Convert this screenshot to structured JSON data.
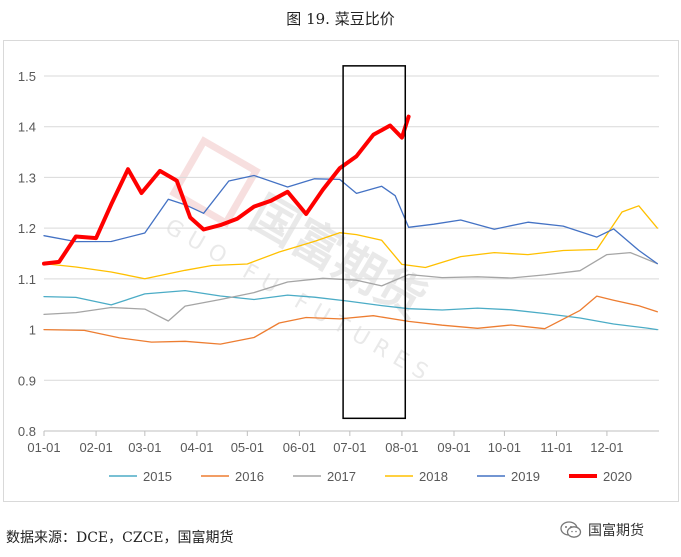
{
  "figure_title": "图 19.  菜豆比价",
  "source_note": "数据来源：DCE，CZCE，国富期货",
  "brand_name": "国富期货",
  "watermark": {
    "text": "国富期货",
    "sub": "GUO FU FUTURES"
  },
  "colors": {
    "2015": "#4bacc6",
    "2016": "#ed7d31",
    "2017": "#a5a5a5",
    "2018": "#ffc000",
    "2019": "#4472c4",
    "2020": "#ff0000"
  },
  "chart_data": {
    "type": "line",
    "title": "",
    "xlabel": "",
    "ylabel": "",
    "ylim": [
      0.8,
      1.5
    ],
    "y_ticks": [
      "0.8",
      "0.9",
      "1",
      "1.1",
      "1.2",
      "1.3",
      "1.4",
      "1.5"
    ],
    "x_ticks": [
      "01-01",
      "02-01",
      "03-01",
      "04-01",
      "05-01",
      "06-01",
      "07-01",
      "08-01",
      "09-01",
      "10-01",
      "11-01",
      "12-01"
    ],
    "grid": "horizontal",
    "legend": "bottom",
    "highlight_box": {
      "x_range": [
        "06-27",
        "08-03"
      ],
      "y_range": [
        0.825,
        1.52
      ]
    },
    "series": [
      {
        "name": "2015",
        "x": [
          "01-01",
          "01-20",
          "02-10",
          "03-01",
          "03-25",
          "04-15",
          "05-05",
          "05-25",
          "06-10",
          "06-30",
          "07-20",
          "08-05",
          "08-25",
          "09-15",
          "10-05",
          "10-25",
          "11-15",
          "12-05",
          "12-25",
          "12-31"
        ],
        "values": [
          1.065,
          1.06,
          1.045,
          1.07,
          1.08,
          1.07,
          1.06,
          1.065,
          1.06,
          1.055,
          1.05,
          1.045,
          1.04,
          1.04,
          1.035,
          1.03,
          1.025,
          1.015,
          1.005,
          1.0
        ]
      },
      {
        "name": "2016",
        "x": [
          "01-01",
          "01-25",
          "02-15",
          "03-05",
          "03-25",
          "04-15",
          "05-05",
          "05-20",
          "06-05",
          "06-25",
          "07-15",
          "08-05",
          "08-25",
          "09-15",
          "10-05",
          "10-25",
          "11-15",
          "11-25",
          "12-05",
          "12-20",
          "12-31"
        ],
        "values": [
          1.0,
          0.995,
          0.98,
          0.975,
          0.98,
          0.975,
          0.985,
          1.01,
          1.02,
          1.02,
          1.03,
          1.02,
          1.01,
          1.0,
          1.005,
          1.0,
          1.04,
          1.07,
          1.06,
          1.045,
          1.035
        ]
      },
      {
        "name": "2017",
        "x": [
          "01-01",
          "01-20",
          "02-10",
          "03-01",
          "03-15",
          "03-25",
          "04-15",
          "05-05",
          "05-25",
          "06-15",
          "07-05",
          "07-20",
          "08-05",
          "08-25",
          "09-15",
          "10-05",
          "10-25",
          "11-15",
          "12-01",
          "12-15",
          "12-31"
        ],
        "values": [
          1.03,
          1.03,
          1.04,
          1.04,
          1.02,
          1.05,
          1.06,
          1.07,
          1.09,
          1.1,
          1.1,
          1.09,
          1.11,
          1.1,
          1.1,
          1.1,
          1.11,
          1.12,
          1.15,
          1.15,
          1.13
        ]
      },
      {
        "name": "2018",
        "x": [
          "01-01",
          "01-20",
          "02-10",
          "03-01",
          "03-25",
          "04-10",
          "05-01",
          "05-20",
          "06-10",
          "06-25",
          "07-05",
          "07-20",
          "08-01",
          "08-15",
          "09-05",
          "09-25",
          "10-15",
          "11-05",
          "11-25",
          "12-10",
          "12-20",
          "12-31"
        ],
        "values": [
          1.13,
          1.12,
          1.11,
          1.1,
          1.12,
          1.13,
          1.13,
          1.15,
          1.17,
          1.19,
          1.19,
          1.18,
          1.13,
          1.12,
          1.14,
          1.15,
          1.15,
          1.16,
          1.16,
          1.23,
          1.24,
          1.2
        ]
      },
      {
        "name": "2019",
        "x": [
          "01-01",
          "01-20",
          "02-10",
          "03-01",
          "03-15",
          "03-25",
          "04-05",
          "04-20",
          "05-05",
          "05-25",
          "06-10",
          "06-25",
          "07-05",
          "07-20",
          "07-28",
          "08-05",
          "08-20",
          "09-05",
          "09-25",
          "10-15",
          "11-05",
          "11-25",
          "12-05",
          "12-20",
          "12-31"
        ],
        "values": [
          1.185,
          1.17,
          1.17,
          1.19,
          1.26,
          1.25,
          1.23,
          1.29,
          1.3,
          1.28,
          1.3,
          1.3,
          1.27,
          1.28,
          1.26,
          1.2,
          1.21,
          1.22,
          1.2,
          1.21,
          1.2,
          1.18,
          1.2,
          1.16,
          1.13
        ]
      },
      {
        "name": "2020",
        "x": [
          "01-01",
          "01-10",
          "01-20",
          "02-01",
          "02-10",
          "02-20",
          "02-28",
          "03-10",
          "03-20",
          "03-28",
          "04-05",
          "04-15",
          "04-25",
          "05-05",
          "05-15",
          "05-25",
          "06-05",
          "06-15",
          "06-25",
          "07-05",
          "07-15",
          "07-25",
          "08-01",
          "08-05"
        ],
        "values": [
          1.13,
          1.13,
          1.18,
          1.18,
          1.25,
          1.32,
          1.27,
          1.31,
          1.29,
          1.22,
          1.2,
          1.21,
          1.22,
          1.24,
          1.25,
          1.27,
          1.23,
          1.28,
          1.32,
          1.34,
          1.38,
          1.4,
          1.38,
          1.42
        ]
      }
    ]
  }
}
